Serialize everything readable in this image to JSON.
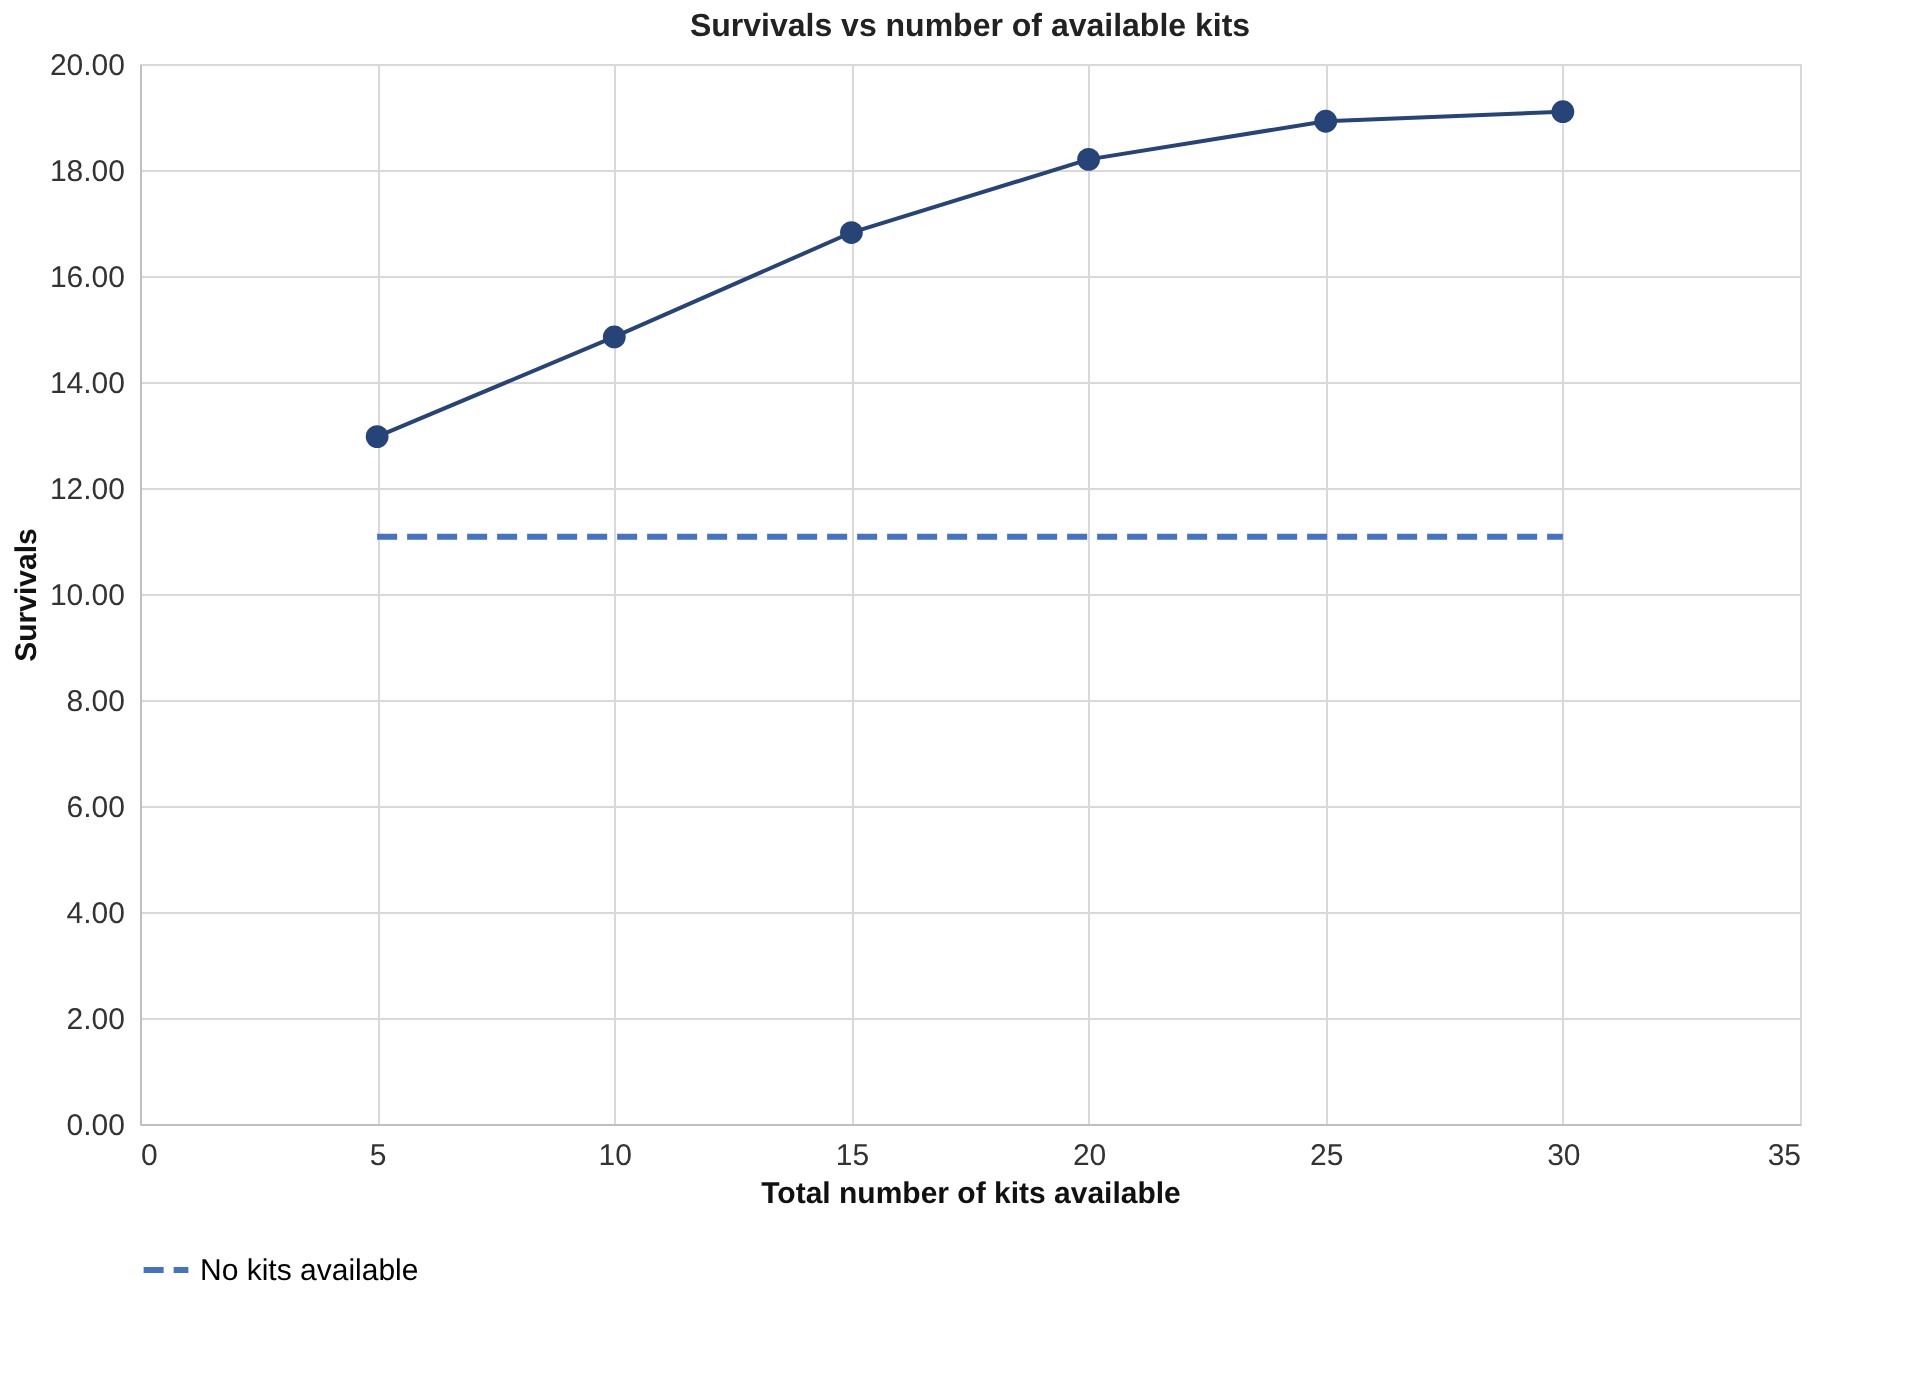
{
  "chart_data": {
    "type": "line",
    "title": "Survivals vs number of available kits",
    "xlabel": "Total number of kits available",
    "ylabel": "Survivals",
    "x": [
      5,
      10,
      15,
      20,
      25,
      30
    ],
    "series": [
      {
        "color": "#264478",
        "values": [
          12.97,
          14.85,
          16.82,
          18.2,
          18.92,
          19.1
        ],
        "marker": "circle",
        "line_style": "solid"
      },
      {
        "name": "No kits available",
        "color": "#4472c4",
        "values": [
          11.08,
          11.08,
          11.08,
          11.08,
          11.08,
          11.08
        ],
        "marker": "none",
        "line_style": "dashed"
      }
    ],
    "xlim": [
      0,
      35
    ],
    "xticks": [
      0,
      5,
      10,
      15,
      20,
      25,
      30,
      35
    ],
    "ylim": [
      0,
      20
    ],
    "yticks": [
      {
        "value": 0,
        "label": "0.00"
      },
      {
        "value": 2,
        "label": "2.00"
      },
      {
        "value": 4,
        "label": "4.00"
      },
      {
        "value": 6,
        "label": "6.00"
      },
      {
        "value": 8,
        "label": "8.00"
      },
      {
        "value": 10,
        "label": "10.00"
      },
      {
        "value": 12,
        "label": "12.00"
      },
      {
        "value": 14,
        "label": "14.00"
      },
      {
        "value": 16,
        "label": "16.00"
      },
      {
        "value": 18,
        "label": "18.00"
      },
      {
        "value": 20,
        "label": "20.00"
      }
    ],
    "grid": true,
    "legend": "bottom"
  }
}
